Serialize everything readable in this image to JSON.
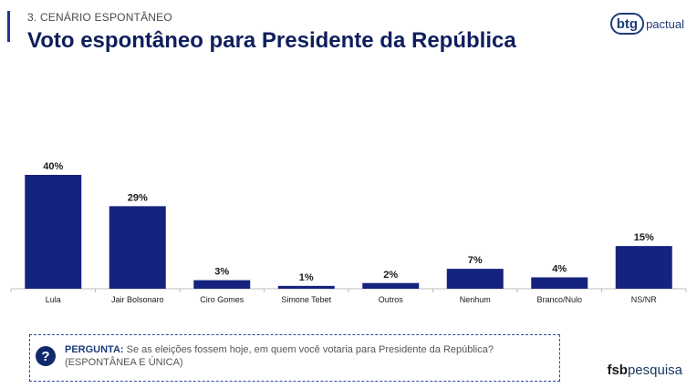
{
  "header": {
    "section": "3. CENÁRIO ESPONTÂNEO",
    "title": "Voto espontâneo para Presidente da República"
  },
  "logos": {
    "btg_bold": "btg",
    "btg_light": "pactual",
    "fsb_bold": "fsb",
    "fsb_light": "pesquisa"
  },
  "question": {
    "icon": "question-icon",
    "label": "PERGUNTA:",
    "text": "Se as eleições fossem hoje, em quem você votaria para Presidente da República?",
    "subtext": "(ESPONTÂNEA E ÚNICA)"
  },
  "colors": {
    "bar": "#16237e",
    "title": "#0f1f5c",
    "accent": "#1a3a8f"
  },
  "chart_data": {
    "type": "bar",
    "categories": [
      "Lula",
      "Jair Bolsonaro",
      "Ciro Gomes",
      "Simone Tebet",
      "Outros",
      "Nenhum",
      "Branco/Nulo",
      "NS/NR"
    ],
    "values": [
      40,
      29,
      3,
      1,
      2,
      7,
      4,
      15
    ],
    "value_labels": [
      "40%",
      "29%",
      "3%",
      "1%",
      "2%",
      "7%",
      "4%",
      "15%"
    ],
    "ylim": [
      0,
      40
    ]
  }
}
